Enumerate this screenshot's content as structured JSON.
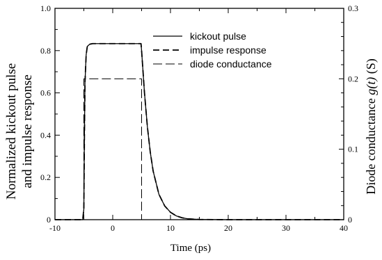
{
  "chart_data": {
    "type": "line",
    "xlabel": "Time (ps)",
    "ylabel_left_line1": "Normalized kickout pulse",
    "ylabel_left_line2": "and impulse response",
    "ylabel_right_prefix": "Diode conductance ",
    "ylabel_right_italic": "g(t)",
    "ylabel_right_suffix": " (S)",
    "xlim": [
      -10,
      40
    ],
    "ylim_left": [
      0,
      1.0
    ],
    "ylim_right": [
      0,
      0.3
    ],
    "x_ticks": [
      "-10",
      "0",
      "10",
      "20",
      "30",
      "40"
    ],
    "y_left_ticks": [
      "0",
      "0.2",
      "0.4",
      "0.6",
      "0.8",
      "1.0"
    ],
    "y_right_ticks": [
      "0",
      "0.1",
      "0.2",
      "0.3"
    ],
    "grid": false,
    "legend_position": "top-right",
    "series": [
      {
        "name": "kickout pulse",
        "style": "solid",
        "axis": "left",
        "x": [
          -10,
          -5.2,
          -5.0,
          -4.9,
          -4.8,
          -4.6,
          -4.4,
          -4.0,
          -3.5,
          4.9,
          5.0,
          5.5,
          6.0,
          6.5,
          7.0,
          8.0,
          9.0,
          10.0,
          11.0,
          12.0,
          13.0,
          15.0,
          20.0,
          40.0
        ],
        "y": [
          0,
          0,
          0.05,
          0.4,
          0.65,
          0.78,
          0.82,
          0.83,
          0.833,
          0.833,
          0.8,
          0.6,
          0.44,
          0.32,
          0.23,
          0.12,
          0.065,
          0.035,
          0.018,
          0.009,
          0.004,
          0.001,
          0,
          0
        ]
      },
      {
        "name": "impulse response",
        "style": "dashed",
        "axis": "left",
        "x": [
          -10,
          -5.2,
          -5.0,
          -4.9,
          -4.8,
          -4.6,
          -4.4,
          -4.0,
          -3.5,
          4.9,
          5.0,
          5.5,
          6.0,
          6.5,
          7.0,
          8.0,
          9.0,
          10.0,
          11.0,
          12.0,
          13.0,
          15.0,
          20.0,
          40.0
        ],
        "y": [
          0,
          0,
          0.05,
          0.4,
          0.65,
          0.78,
          0.82,
          0.83,
          0.833,
          0.833,
          0.8,
          0.6,
          0.44,
          0.32,
          0.23,
          0.12,
          0.065,
          0.035,
          0.018,
          0.009,
          0.004,
          0.001,
          0,
          0
        ]
      },
      {
        "name": "diode conductance",
        "style": "long-dash",
        "axis": "right",
        "x": [
          -10,
          -5,
          -5,
          5,
          5,
          40
        ],
        "y": [
          0,
          0,
          0.2,
          0.2,
          0,
          0
        ]
      }
    ]
  }
}
